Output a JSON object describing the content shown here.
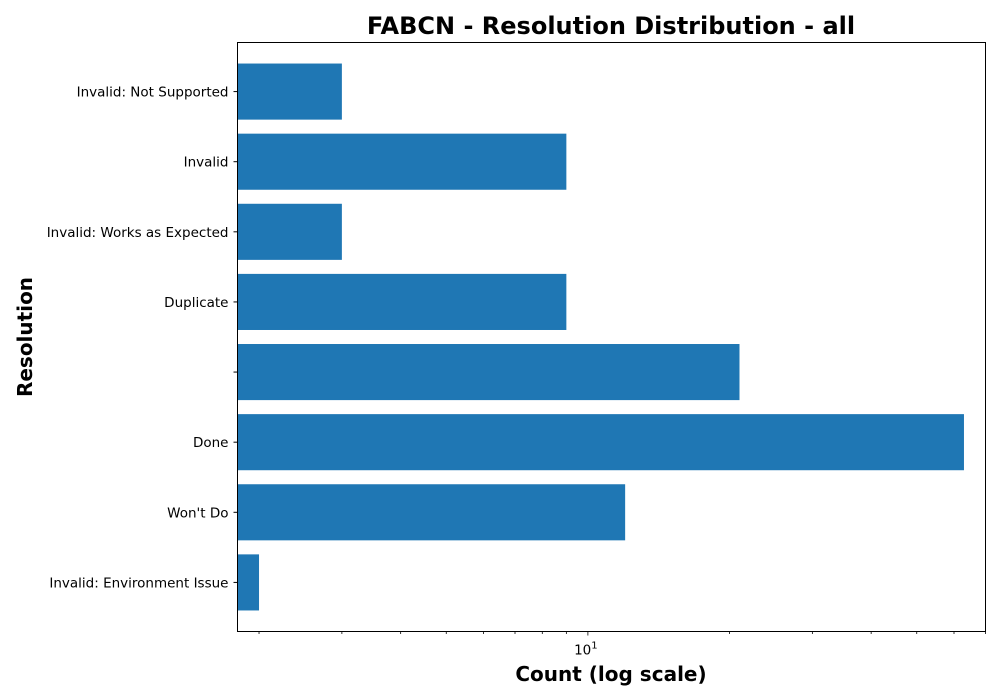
{
  "chart_data": {
    "type": "bar",
    "orientation": "horizontal",
    "title": "FABCN - Resolution Distribution - all",
    "xlabel": "Count (log scale)",
    "ylabel": "Resolution",
    "x_scale": "log",
    "xlim": [
      1.8,
      70
    ],
    "x_tick_labels": [
      {
        "value": 10,
        "base": "10",
        "exponent": "1"
      }
    ],
    "categories": [
      "Invalid: Environment Issue",
      "Won't Do",
      "Done",
      "",
      "Duplicate",
      "Invalid: Works as Expected",
      "Invalid",
      "Invalid: Not Supported"
    ],
    "values": [
      2,
      12,
      63,
      21,
      9,
      3,
      9,
      3
    ],
    "bar_color": "#1f77b4",
    "grid": false
  }
}
